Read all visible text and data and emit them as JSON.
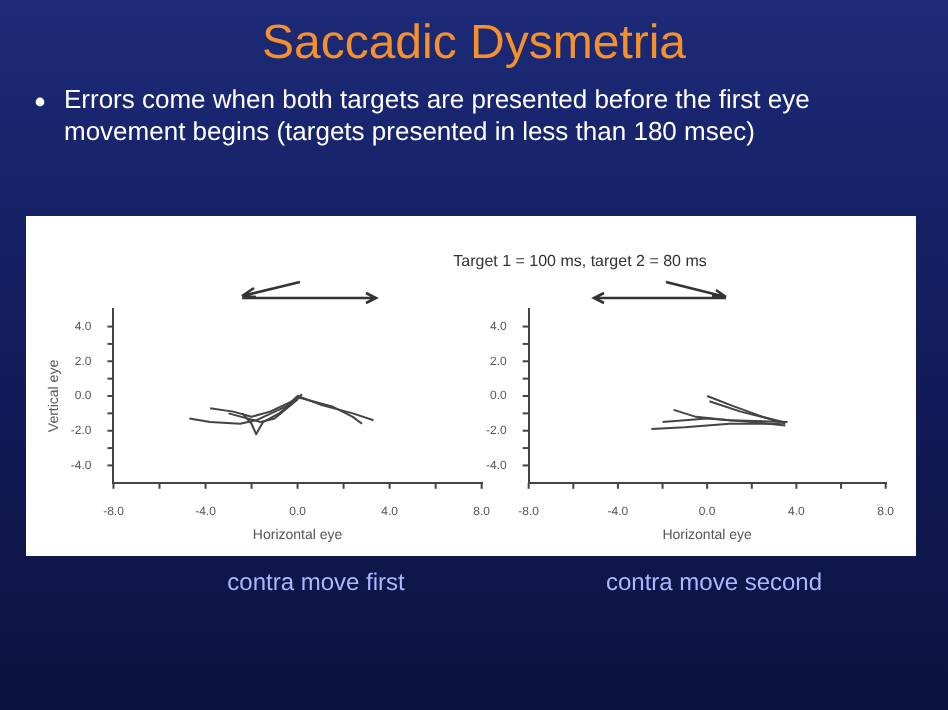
{
  "chart_data": [
    {
      "type": "line",
      "title": "Saccadic Dysmetria",
      "subtitle": "Errors come when both targets are presented before the first eye movement begins (targets presented in less than 180 msec)",
      "xlabel": "Horizontal eye",
      "ylabel": "Vertical eye",
      "annotations": [
        "Target 1 = 100 ms, target 2 = 80 ms",
        "contra move first"
      ],
      "xlim": [
        -8,
        8
      ],
      "ylim": [
        -5,
        5
      ],
      "xticks": [
        {
          "value": -8,
          "label": "-8.0"
        },
        {
          "value": -6,
          "label": null
        },
        {
          "value": -4,
          "label": "-4.0"
        },
        {
          "value": -2,
          "label": null
        },
        {
          "value": 0,
          "label": "0.0"
        },
        {
          "value": 2,
          "label": null
        },
        {
          "value": 4,
          "label": "4.0"
        },
        {
          "value": 6,
          "label": null
        },
        {
          "value": 8,
          "label": "8.0"
        }
      ],
      "yticks": [
        {
          "value": -4,
          "label": "-4.0"
        },
        {
          "value": -3,
          "label": null
        },
        {
          "value": -2,
          "label": "-2.0"
        },
        {
          "value": -1,
          "label": null
        },
        {
          "value": 0,
          "label": "0.0"
        },
        {
          "value": 1,
          "label": null
        },
        {
          "value": 2,
          "label": "2.0"
        },
        {
          "value": 3,
          "label": null
        },
        {
          "value": 4,
          "label": "4.0"
        }
      ],
      "grid": false,
      "legend": false,
      "marker": "none",
      "series": [
        {
          "color": "#444444",
          "x": [
            -4.7,
            -3.8,
            -2.5,
            -1.8,
            -0.5,
            0,
            1.0,
            2.4,
            3.3
          ],
          "values": [
            -1.3,
            -1.5,
            -1.6,
            -1.4,
            -0.6,
            0,
            -0.5,
            -1.0,
            -1.4
          ]
        },
        {
          "color": "#444444",
          "x": [
            -3.8,
            -2.8,
            -2.0,
            -1.2,
            0.1,
            1.5,
            2.4,
            2.8
          ],
          "values": [
            -0.7,
            -0.9,
            -1.2,
            -0.9,
            -0.1,
            -0.6,
            -1.2,
            -1.6
          ]
        },
        {
          "color": "#444444",
          "x": [
            -2.4,
            -2.0,
            -1.8,
            -1.5,
            -0.8,
            0.2
          ],
          "values": [
            -1.0,
            -1.6,
            -2.2,
            -1.5,
            -1.0,
            0.1
          ]
        },
        {
          "color": "#444444",
          "x": [
            -3.0,
            -1.6,
            -1.0,
            0
          ],
          "values": [
            -1.0,
            -1.5,
            -1.3,
            -0.2
          ]
        }
      ]
    },
    {
      "type": "line",
      "xlabel": "Horizontal eye",
      "annotations": [
        "contra move second"
      ],
      "xlim": [
        -8,
        8
      ],
      "ylim": [
        -5,
        5
      ],
      "xticks": [
        {
          "value": -8,
          "label": "-8.0"
        },
        {
          "value": -6,
          "label": null
        },
        {
          "value": -4,
          "label": "-4.0"
        },
        {
          "value": -2,
          "label": null
        },
        {
          "value": 0,
          "label": "0.0"
        },
        {
          "value": 2,
          "label": null
        },
        {
          "value": 4,
          "label": "4.0"
        },
        {
          "value": 6,
          "label": null
        },
        {
          "value": 8,
          "label": "8.0"
        }
      ],
      "yticks": [
        {
          "value": -4,
          "label": "-4.0"
        },
        {
          "value": -3,
          "label": null
        },
        {
          "value": -2,
          "label": "-2.0"
        },
        {
          "value": -1,
          "label": null
        },
        {
          "value": 0,
          "label": "0.0"
        },
        {
          "value": 1,
          "label": null
        },
        {
          "value": 2,
          "label": "2.0"
        },
        {
          "value": 3,
          "label": null
        },
        {
          "value": 4,
          "label": "4.0"
        }
      ],
      "grid": false,
      "legend": false,
      "marker": "none",
      "series": [
        {
          "color": "#444444",
          "x": [
            0,
            1.2,
            2.5,
            3.5
          ],
          "values": [
            0,
            -0.6,
            -1.2,
            -1.6
          ]
        },
        {
          "color": "#444444",
          "x": [
            0.1,
            1.5,
            3.4
          ],
          "values": [
            -0.3,
            -0.9,
            -1.5
          ]
        },
        {
          "color": "#444444",
          "x": [
            -1.5,
            -0.5,
            1.0,
            3.6
          ],
          "values": [
            -0.8,
            -1.2,
            -1.4,
            -1.5
          ]
        },
        {
          "color": "#444444",
          "x": [
            -2.5,
            -1.0,
            1.0,
            3.3
          ],
          "values": [
            -1.9,
            -1.8,
            -1.6,
            -1.6
          ]
        },
        {
          "color": "#444444",
          "x": [
            -2.0,
            0,
            2.0,
            3.5
          ],
          "values": [
            -1.5,
            -1.3,
            -1.5,
            -1.7
          ]
        }
      ]
    }
  ]
}
